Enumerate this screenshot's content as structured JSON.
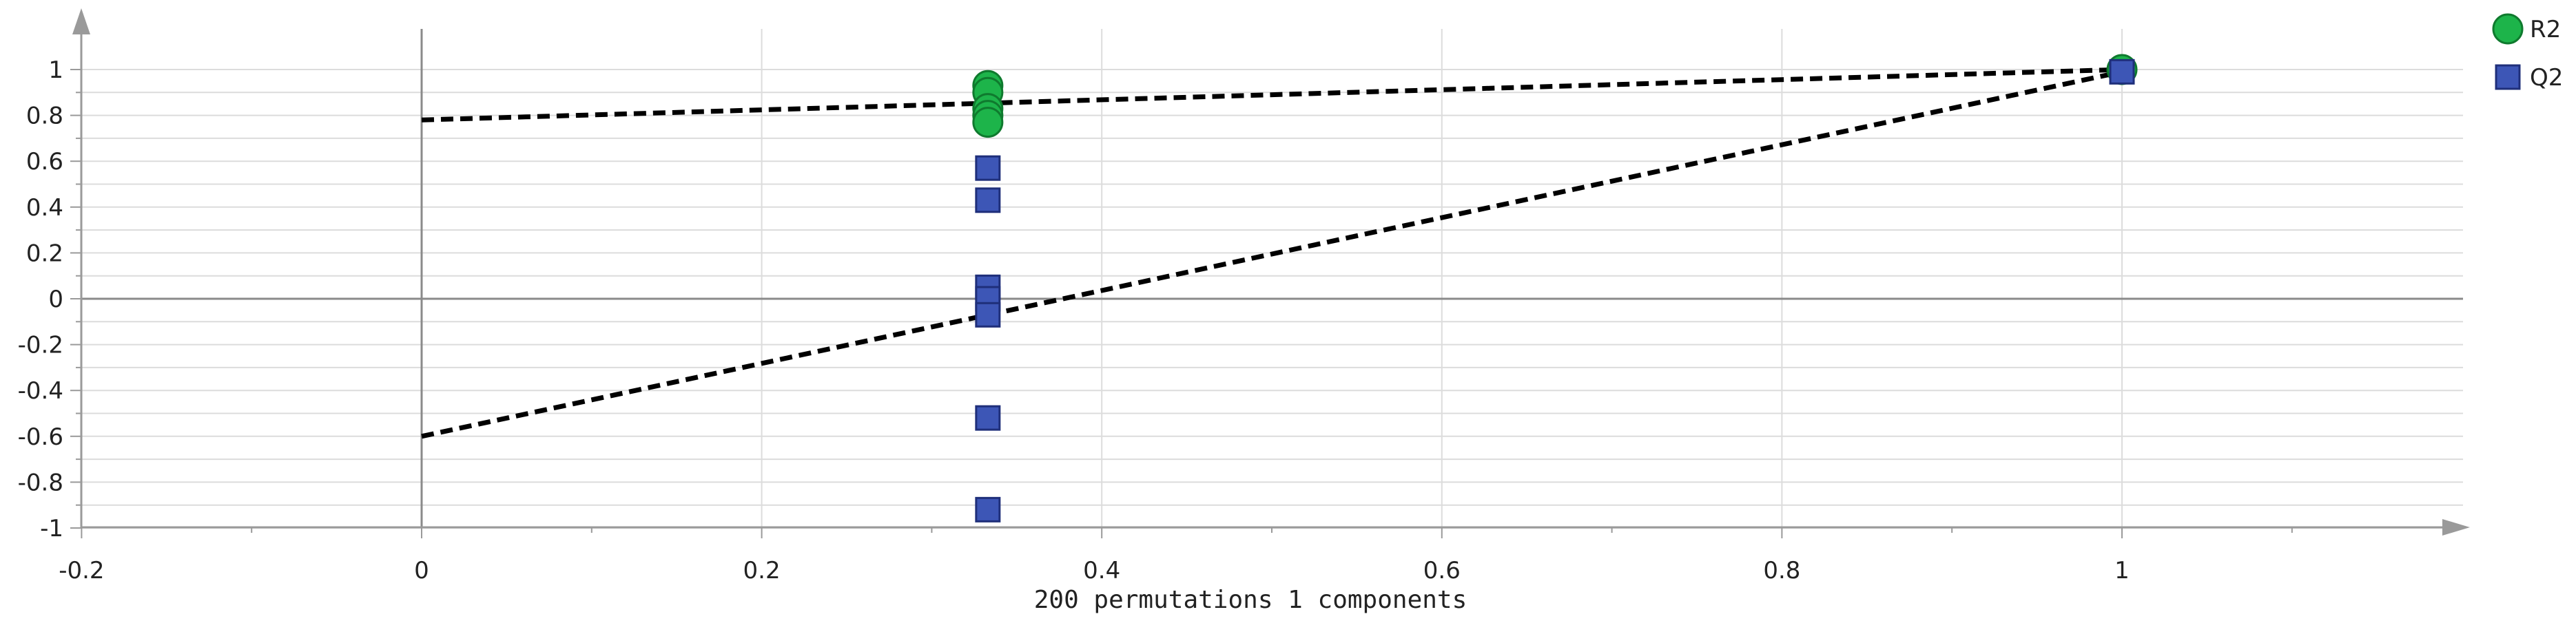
{
  "chart_data": {
    "type": "scatter",
    "xlabel": "200 permutations 1 components",
    "ylabel": "",
    "title": "",
    "xlim": [
      -0.2,
      1.15
    ],
    "ylim": [
      -1,
      1.15
    ],
    "x_ticks": [
      -0.2,
      0,
      0.2,
      0.4,
      0.6,
      0.8,
      1
    ],
    "x_tick_labels": [
      "-0.2",
      "0",
      "0.2",
      "0.4",
      "0.6",
      "0.8",
      "1"
    ],
    "y_ticks": [
      1,
      0.8,
      0.6,
      0.4,
      0.2,
      0,
      -0.2,
      -0.4,
      -0.6,
      -0.8,
      -1
    ],
    "y_tick_labels": [
      "1",
      "0.8",
      "0.6",
      "0.4",
      "0.2",
      "0",
      "-0.2",
      "-0.4",
      "-0.6",
      "-0.8",
      "-1"
    ],
    "grid": true,
    "legend_position": "top-right",
    "series": [
      {
        "name": "R2",
        "marker": "circle",
        "color": "#1db44a",
        "x": [
          0.333,
          0.333,
          0.333,
          0.333,
          0.333,
          1.0
        ],
        "y": [
          0.93,
          0.9,
          0.83,
          0.8,
          0.77,
          1.0
        ]
      },
      {
        "name": "Q2",
        "marker": "square",
        "color": "#3d56b6",
        "x": [
          0.333,
          0.333,
          0.333,
          0.333,
          0.333,
          0.333,
          0.333,
          1.0
        ],
        "y": [
          0.57,
          0.43,
          0.05,
          0.0,
          -0.07,
          -0.52,
          -0.92,
          0.99
        ]
      }
    ],
    "regression_lines": [
      {
        "of": "R2",
        "x": [
          0,
          1
        ],
        "y": [
          0.78,
          1.0
        ],
        "style": "dashed",
        "color": "#000000"
      },
      {
        "of": "Q2",
        "x": [
          0,
          1
        ],
        "y": [
          -0.6,
          0.99
        ],
        "style": "dashed",
        "color": "#000000"
      }
    ]
  }
}
